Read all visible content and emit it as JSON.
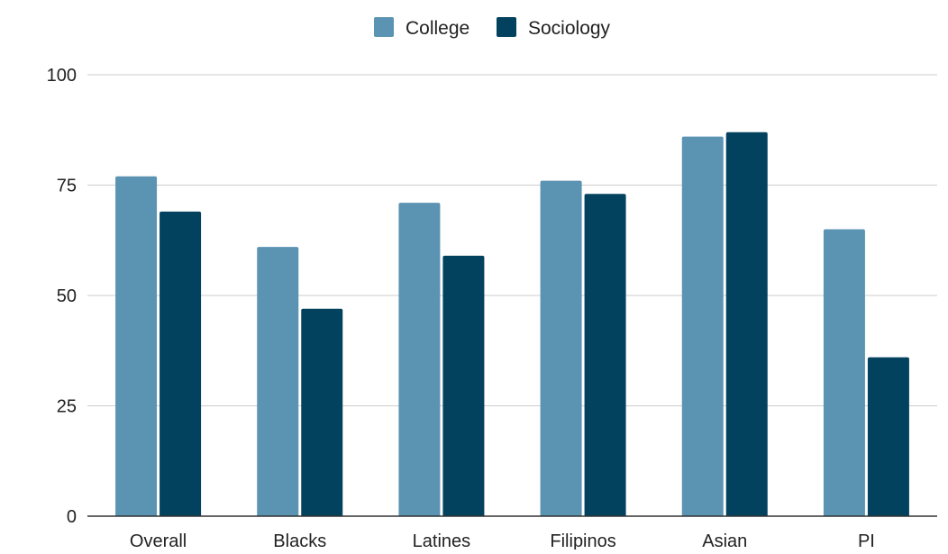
{
  "chart_data": {
    "type": "bar",
    "title": "",
    "xlabel": "",
    "ylabel": "",
    "categories": [
      "Overall",
      "Blacks",
      "Latines",
      "Filipinos",
      "Asian",
      "PI"
    ],
    "series": [
      {
        "name": "College",
        "color": "#5b93b2",
        "values": [
          77,
          61,
          71,
          76,
          86,
          65
        ]
      },
      {
        "name": "Sociology",
        "color": "#03425f",
        "values": [
          69,
          47,
          59,
          73,
          87,
          36
        ]
      }
    ],
    "ylim": [
      0,
      100
    ],
    "yticks": [
      0,
      25,
      50,
      75,
      100
    ],
    "grid": true,
    "legend_position": "top-center"
  }
}
